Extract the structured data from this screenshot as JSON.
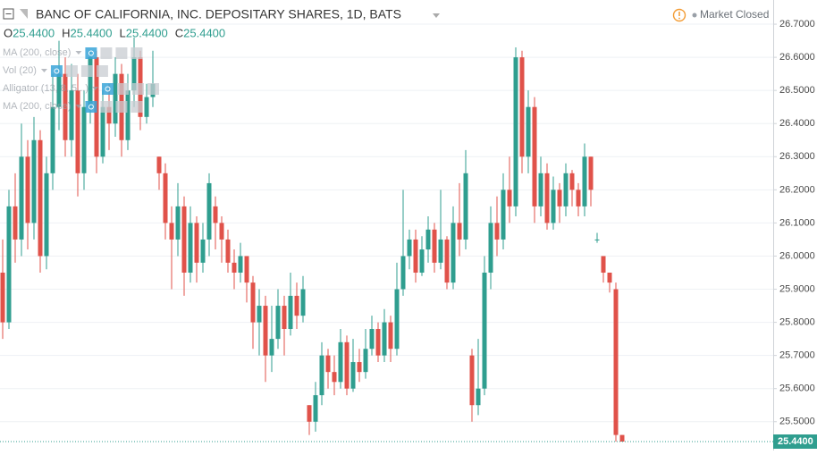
{
  "header": {
    "symbol": "BANC OF CALIFORNIA, INC. DEPOSITARY SHARES, 1D, BATS",
    "status": "Market Closed",
    "ohlc": [
      {
        "key": "O",
        "value": "25.4400"
      },
      {
        "key": "H",
        "value": "25.4400"
      },
      {
        "key": "L",
        "value": "25.4400"
      },
      {
        "key": "C",
        "value": "25.4400"
      }
    ],
    "indicators": [
      "MA (200, close)",
      "Vol (20)",
      "Alligator (13, 8, 5...)",
      "MA (200, close)"
    ]
  },
  "chart_data": {
    "type": "candlestick",
    "up_color": "#2f9e8f",
    "down_color": "#e0524a",
    "grid": true,
    "ylim": [
      25.413,
      26.773
    ],
    "yticks": [
      {
        "value": 26.7,
        "label": "26.7000"
      },
      {
        "value": 26.6,
        "label": "26.6000"
      },
      {
        "value": 26.5,
        "label": "26.5000"
      },
      {
        "value": 26.4,
        "label": "26.4000"
      },
      {
        "value": 26.3,
        "label": "26.3000"
      },
      {
        "value": 26.2,
        "label": "26.2000"
      },
      {
        "value": 26.1,
        "label": "26.1000"
      },
      {
        "value": 26.0,
        "label": "26.0000"
      },
      {
        "value": 25.9,
        "label": "25.9000"
      },
      {
        "value": 25.8,
        "label": "25.8000"
      },
      {
        "value": 25.7,
        "label": "25.7000"
      },
      {
        "value": 25.6,
        "label": "25.6000"
      },
      {
        "value": 25.5,
        "label": "25.5000"
      }
    ],
    "last_price": {
      "value": 25.44,
      "label": "25.4400"
    },
    "open": [
      25.95,
      25.8,
      26.15,
      26.05,
      26.3,
      26.1,
      26.35,
      26.0,
      26.25,
      26.45,
      26.55,
      26.35,
      26.5,
      26.25,
      26.45,
      26.6,
      26.3,
      26.45,
      26.4,
      26.55,
      26.35,
      26.5,
      26.6,
      26.42,
      26.48,
      26.3,
      26.25,
      26.1,
      26.05,
      26.15,
      25.95,
      26.1,
      25.98,
      26.05,
      26.15,
      26.1,
      26.05,
      25.98,
      25.95,
      26.0,
      25.92,
      25.8,
      25.85,
      25.7,
      25.75,
      25.85,
      25.78,
      25.88,
      25.82,
      25.55,
      25.5,
      25.58,
      25.7,
      25.65,
      25.62,
      25.74,
      25.6,
      25.68,
      25.65,
      25.72,
      25.78,
      25.7,
      25.8,
      25.72,
      25.9,
      26.0,
      26.05,
      25.95,
      26.02,
      26.08,
      25.98,
      26.05,
      25.92,
      26.1,
      26.05,
      25.7,
      25.55,
      25.6,
      25.95,
      26.1,
      26.05,
      26.2,
      26.15,
      26.6,
      26.3,
      26.45,
      26.15,
      26.25,
      26.1,
      26.2,
      26.15,
      26.25,
      26.2,
      26.15,
      26.3,
      26.05,
      26.0,
      25.95,
      25.9,
      25.46
    ],
    "high": [
      26.05,
      26.2,
      26.25,
      26.4,
      26.35,
      26.42,
      26.38,
      26.3,
      26.55,
      26.65,
      26.6,
      26.58,
      26.55,
      26.5,
      26.62,
      26.62,
      26.5,
      26.52,
      26.6,
      26.58,
      26.55,
      26.66,
      26.62,
      26.52,
      26.62,
      26.3,
      26.28,
      26.15,
      26.22,
      26.18,
      26.15,
      26.12,
      26.1,
      26.25,
      26.18,
      26.12,
      26.08,
      26.02,
      26.04,
      26.0,
      25.94,
      25.9,
      25.88,
      25.85,
      25.9,
      25.88,
      25.95,
      25.92,
      25.94,
      25.55,
      25.62,
      25.74,
      25.72,
      25.7,
      25.78,
      25.76,
      25.75,
      25.72,
      25.78,
      25.82,
      25.8,
      25.84,
      25.82,
      25.98,
      26.2,
      26.08,
      26.08,
      26.06,
      26.12,
      26.1,
      26.2,
      26.06,
      26.15,
      26.22,
      26.32,
      25.72,
      25.75,
      26.0,
      26.15,
      26.18,
      26.25,
      26.3,
      26.63,
      26.62,
      26.5,
      26.48,
      26.3,
      26.28,
      26.24,
      26.22,
      26.28,
      26.26,
      26.22,
      26.34,
      26.3,
      26.07,
      26.0,
      25.95,
      25.92,
      25.46
    ],
    "low": [
      25.75,
      25.78,
      25.98,
      26.0,
      26.02,
      26.05,
      25.95,
      25.96,
      26.2,
      26.38,
      26.3,
      26.3,
      26.18,
      26.2,
      26.4,
      26.25,
      26.28,
      26.32,
      26.36,
      26.3,
      26.32,
      26.45,
      26.38,
      26.4,
      26.45,
      26.2,
      26.05,
      25.9,
      26.0,
      25.88,
      25.92,
      25.92,
      25.95,
      26.0,
      26.02,
      25.98,
      25.95,
      25.9,
      25.92,
      25.86,
      25.72,
      25.7,
      25.62,
      25.65,
      25.72,
      25.7,
      25.76,
      25.78,
      25.8,
      25.46,
      25.47,
      25.55,
      25.6,
      25.58,
      25.6,
      25.58,
      25.59,
      25.62,
      25.63,
      25.7,
      25.68,
      25.68,
      25.68,
      25.7,
      25.88,
      25.96,
      25.92,
      25.94,
      25.98,
      25.95,
      25.96,
      25.9,
      25.9,
      26.0,
      26.02,
      25.5,
      25.52,
      25.58,
      25.9,
      26.0,
      26.02,
      26.1,
      26.12,
      26.25,
      26.25,
      26.1,
      26.12,
      26.08,
      26.08,
      26.1,
      26.12,
      26.15,
      26.12,
      26.12,
      26.15,
      26.04,
      25.92,
      25.89,
      25.44,
      25.44
    ],
    "close": [
      25.8,
      26.15,
      26.05,
      26.3,
      26.1,
      26.35,
      26.0,
      26.25,
      26.45,
      26.55,
      26.35,
      26.5,
      26.25,
      26.45,
      26.6,
      26.3,
      26.45,
      26.4,
      26.55,
      26.35,
      26.5,
      26.6,
      26.42,
      26.48,
      26.52,
      26.25,
      26.1,
      26.05,
      26.15,
      25.95,
      26.1,
      25.98,
      26.05,
      26.22,
      26.1,
      26.05,
      25.98,
      25.95,
      26.0,
      25.92,
      25.8,
      25.85,
      25.7,
      25.75,
      25.85,
      25.78,
      25.88,
      25.82,
      25.9,
      25.5,
      25.58,
      25.7,
      25.65,
      25.62,
      25.74,
      25.6,
      25.68,
      25.65,
      25.72,
      25.78,
      25.7,
      25.8,
      25.72,
      25.9,
      26.0,
      26.05,
      25.95,
      26.02,
      26.08,
      25.98,
      26.05,
      25.92,
      26.1,
      26.05,
      26.25,
      25.55,
      25.6,
      25.95,
      26.1,
      26.05,
      26.2,
      26.15,
      26.6,
      26.3,
      26.45,
      26.15,
      26.25,
      26.1,
      26.2,
      26.15,
      26.25,
      26.2,
      26.15,
      26.3,
      26.2,
      26.05,
      25.95,
      25.92,
      25.46,
      25.44
    ]
  }
}
